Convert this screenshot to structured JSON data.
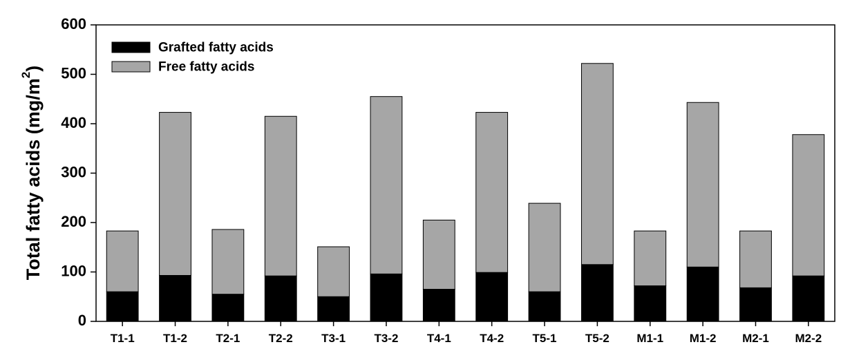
{
  "chart_data": {
    "type": "bar",
    "stacked": true,
    "categories": [
      "T1-1",
      "T1-2",
      "T2-1",
      "T2-2",
      "T3-1",
      "T3-2",
      "T4-1",
      "T4-2",
      "T5-1",
      "T5-2",
      "M1-1",
      "M1-2",
      "M2-1",
      "M2-2"
    ],
    "series": [
      {
        "name": "Grafted fatty acids",
        "color": "#000000",
        "values": [
          60,
          93,
          55,
          92,
          50,
          96,
          65,
          99,
          60,
          115,
          72,
          110,
          68,
          92
        ]
      },
      {
        "name": "Free fatty acids",
        "color": "#a6a6a6",
        "values": [
          123,
          330,
          131,
          323,
          101,
          359,
          140,
          324,
          179,
          407,
          111,
          333,
          115,
          286
        ]
      }
    ],
    "ylabel": "Total fatty acids (mg/m",
    "ylabel_sup": "2",
    "ylabel_close": ")",
    "ylim": [
      0,
      600
    ],
    "yticks": [
      0,
      100,
      200,
      300,
      400,
      500,
      600
    ],
    "legend_position": "top-left",
    "grid": false
  }
}
